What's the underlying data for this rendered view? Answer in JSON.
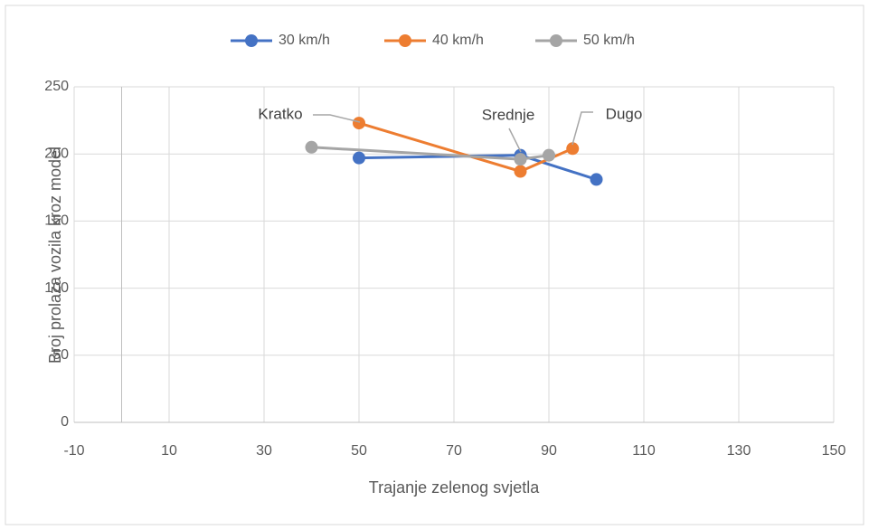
{
  "chart_data": {
    "type": "line",
    "x_label": "Trajanje zelenog svjetla",
    "y_label": "Broj prolaza vozila kroz model",
    "xlim": [
      -10,
      150
    ],
    "xticks": [
      -10,
      10,
      30,
      50,
      70,
      90,
      110,
      130,
      150
    ],
    "ylim": [
      0,
      250
    ],
    "yticks": [
      0,
      50,
      100,
      150,
      200,
      250
    ],
    "grid": true,
    "legend": "top",
    "series": [
      {
        "name": "30 km/h",
        "color": "#4472c4",
        "x": [
          50,
          84,
          100
        ],
        "values": [
          197,
          199,
          181
        ]
      },
      {
        "name": "40 km/h",
        "color": "#ed7d31",
        "x": [
          50,
          84,
          95
        ],
        "values": [
          223,
          187,
          204
        ]
      },
      {
        "name": "50 km/h",
        "color": "#a5a5a5",
        "x": [
          40,
          84,
          90
        ],
        "values": [
          205,
          196,
          199
        ]
      }
    ],
    "annotations": [
      "Kratko",
      "Srednje",
      "Dugo"
    ]
  }
}
